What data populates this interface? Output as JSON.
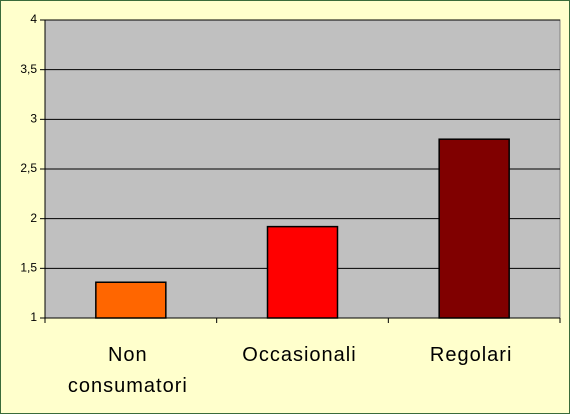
{
  "chart_data": {
    "type": "bar",
    "categories": [
      "Non consumatori",
      "Occasionali",
      "Regolari"
    ],
    "values": [
      1.36,
      1.92,
      2.8
    ],
    "colors": [
      "#ff6600",
      "#ff0000",
      "#800000"
    ],
    "ylim": [
      1,
      4
    ],
    "yticks": [
      1,
      {
        "value": 1.5,
        "label": "1,5"
      },
      2,
      {
        "value": 2.5,
        "label": "2,5"
      },
      3,
      {
        "value": 3.5,
        "label": "3,5"
      },
      4
    ],
    "grid": true
  }
}
